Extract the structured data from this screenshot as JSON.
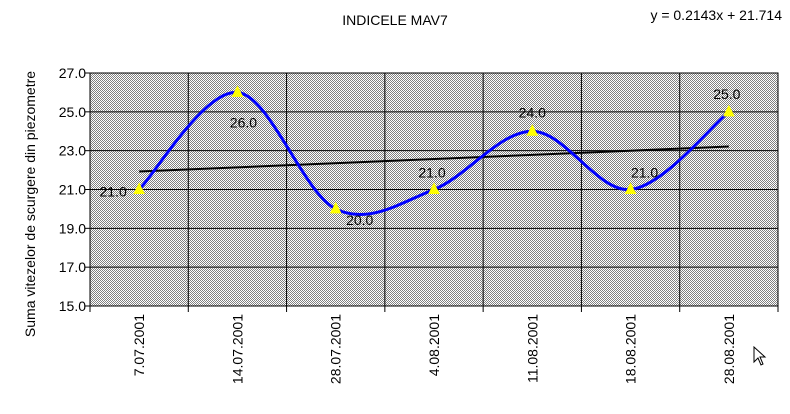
{
  "chart_data": {
    "type": "line",
    "title": "INDICELE MAV7",
    "equation": "y = 0.2143x + 21.714",
    "xlabel": "",
    "ylabel": "Suma vitezelor de scurgere din piezometre",
    "categories": [
      "7.07.2001",
      "14.07.2001",
      "28.07.2001",
      "4.08.2001",
      "11.08.2001",
      "18.08.2001",
      "28.08.2001"
    ],
    "series": [
      {
        "values": [
          21.0,
          26.0,
          20.0,
          21.0,
          24.0,
          21.0,
          25.0
        ]
      }
    ],
    "data_labels": [
      "21.0",
      "26.0",
      "20.0",
      "21.0",
      "24.0",
      "21.0",
      "25.0"
    ],
    "trendline": {
      "slope": 0.2143,
      "intercept": 21.714
    },
    "ylim": [
      15,
      27
    ],
    "yticks": [
      "15.0",
      "17.0",
      "19.0",
      "21.0",
      "23.0",
      "25.0",
      "27.0"
    ],
    "grid": true,
    "colors": {
      "series": "#0000ff",
      "marker": "#ffff00",
      "trend": "#000000",
      "plot_bg": "#c0c0c0",
      "grid": "#000000"
    }
  }
}
